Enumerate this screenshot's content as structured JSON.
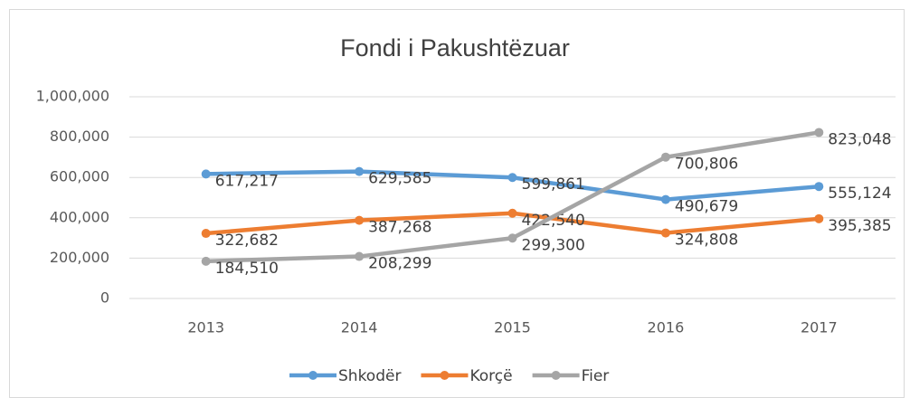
{
  "chart_data": {
    "type": "line",
    "title": "Fondi i Pakushtëzuar",
    "categories": [
      "2013",
      "2014",
      "2015",
      "2016",
      "2017"
    ],
    "series": [
      {
        "name": "Shkodër",
        "color": "#5b9bd5",
        "values": [
          617217,
          629585,
          599861,
          490679,
          555124
        ],
        "value_labels": [
          "617,217",
          "629,585",
          "599,861",
          "490,679",
          "555,124"
        ]
      },
      {
        "name": "Korçë",
        "color": "#ed7d31",
        "values": [
          322682,
          387268,
          422540,
          324808,
          395385
        ],
        "value_labels": [
          "322,682",
          "387,268",
          "422,540",
          "324,808",
          "395,385"
        ]
      },
      {
        "name": "Fier",
        "color": "#a5a5a5",
        "values": [
          184510,
          208299,
          299300,
          700806,
          823048
        ],
        "value_labels": [
          "184,510",
          "208,299",
          "299,300",
          "700,806",
          "823,048"
        ]
      }
    ],
    "ylim": [
      0,
      1000000
    ],
    "yticks": [
      0,
      {
        "value": 200000,
        "label": "200,000"
      },
      {
        "value": 400000,
        "label": "400,000"
      },
      {
        "value": 600000,
        "label": "600,000"
      },
      {
        "value": 800000,
        "label": "800,000"
      },
      {
        "value": 1000000,
        "label": "1,000,000"
      }
    ],
    "grid": true,
    "legend": "bottom"
  }
}
